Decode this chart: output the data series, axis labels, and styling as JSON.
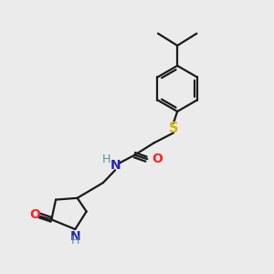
{
  "bg_color": "#ebebeb",
  "line_color": "#1a1a1a",
  "S_color": "#ccbb00",
  "N_color": "#4d9999",
  "O_color": "#ff2222",
  "N_blue_color": "#2222bb",
  "font_size": 8.5,
  "line_width": 1.6,
  "figsize": [
    3.0,
    3.0
  ],
  "dpi": 100,
  "xlim": [
    0,
    10
  ],
  "ylim": [
    0,
    10
  ]
}
